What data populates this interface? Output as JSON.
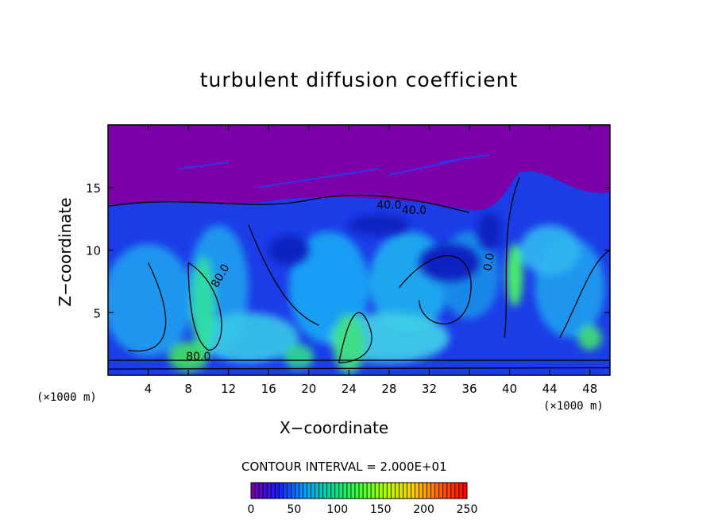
{
  "chart_data": {
    "type": "heatmap",
    "title": "turbulent diffusion coefficient",
    "xlabel": "X−coordinate",
    "ylabel": "Z−coordinate",
    "x_unit": "(×1000 m)",
    "z_unit": "(×1000 m)",
    "xlim": [
      0,
      50
    ],
    "ylim": [
      0,
      20
    ],
    "xticks": [
      4,
      8,
      12,
      16,
      20,
      24,
      28,
      32,
      36,
      40,
      44,
      48
    ],
    "yticks": [
      5,
      10,
      15
    ],
    "contour_interval_label": "CONTOUR INTERVAL = 2.000E+01",
    "contour_interval": 20,
    "contour_labels": [
      "40.0",
      "40.0",
      "80.0",
      "80.0",
      "0.0"
    ],
    "colorbar": {
      "min": 0,
      "max": 250,
      "ticks": [
        0,
        50,
        100,
        150,
        200,
        250
      ],
      "colors": [
        "#7b00a8",
        "#1a1aff",
        "#00a0ff",
        "#00e090",
        "#40ff40",
        "#b0ff00",
        "#ffd000",
        "#ff6000",
        "#ff0000"
      ]
    },
    "background_value_color": "#7b00a8"
  }
}
